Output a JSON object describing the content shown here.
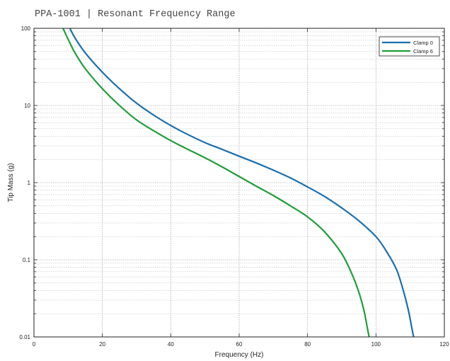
{
  "chart_data": {
    "type": "line",
    "title": "PPA-1001 | Resonant Frequency Range",
    "xlabel": "Frequency (Hz)",
    "ylabel": "Tip Mass (g)",
    "xlim": [
      0,
      120
    ],
    "ylim": [
      0.01,
      100
    ],
    "yscale": "log",
    "grid": true,
    "legend_position": "top-right",
    "x_ticks": [
      "0",
      "20",
      "40",
      "60",
      "80",
      "100",
      "120"
    ],
    "y_ticks": [
      "0.01",
      "0.1",
      "1",
      "10",
      "100"
    ],
    "series": [
      {
        "name": "Clamp 0",
        "color": "#1a6faf",
        "x": [
          10.5,
          12,
          15,
          20,
          25,
          30,
          35,
          40,
          45,
          50,
          55,
          60,
          65,
          70,
          75,
          80,
          85,
          90,
          95,
          100,
          103,
          106,
          108,
          109.5,
          110.5,
          111
        ],
        "y": [
          100,
          75,
          48,
          27,
          16.5,
          10.7,
          7.5,
          5.5,
          4.2,
          3.3,
          2.7,
          2.2,
          1.8,
          1.45,
          1.15,
          0.88,
          0.66,
          0.47,
          0.32,
          0.2,
          0.13,
          0.075,
          0.04,
          0.022,
          0.013,
          0.01
        ]
      },
      {
        "name": "Clamp 6",
        "color": "#1f9e3a",
        "x": [
          8.5,
          10,
          12,
          15,
          20,
          25,
          30,
          35,
          40,
          45,
          50,
          55,
          60,
          65,
          70,
          75,
          80,
          85,
          90,
          93,
          95,
          96.5,
          97.5,
          98
        ],
        "y": [
          100,
          72,
          48,
          30,
          16.5,
          10,
          6.5,
          4.7,
          3.5,
          2.7,
          2.1,
          1.6,
          1.2,
          0.9,
          0.68,
          0.5,
          0.36,
          0.23,
          0.12,
          0.065,
          0.038,
          0.022,
          0.013,
          0.01
        ]
      }
    ]
  }
}
